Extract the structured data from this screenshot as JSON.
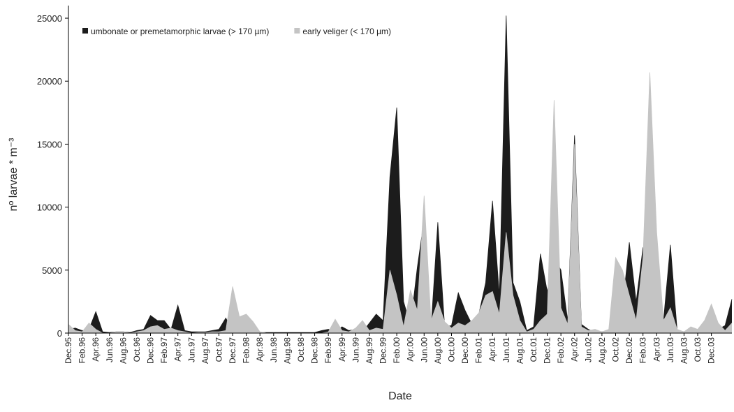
{
  "chart_data": {
    "type": "area",
    "x_label": "Date",
    "y_label": "nº larvae * m⁻³",
    "categories": [
      "Dec.95",
      null,
      "Feb.96",
      null,
      "Apr.96",
      null,
      "Jun.96",
      null,
      "Aug.96",
      null,
      "Oct.96",
      null,
      "Dec.96",
      null,
      "Feb.97",
      null,
      "Apr.97",
      null,
      "Jun.97",
      null,
      "Aug.97",
      null,
      "Oct.97",
      null,
      "Dec.97",
      null,
      "Feb.98",
      null,
      "Apr.98",
      null,
      "Jun.98",
      null,
      "Aug.98",
      null,
      "Oct.98",
      null,
      "Dec.98",
      null,
      "Feb.99",
      null,
      "Apr.99",
      null,
      "Jun.99",
      null,
      "Aug.99",
      null,
      "Dec.99",
      null,
      "Feb.00",
      null,
      "Apr.00",
      null,
      "Jun.00",
      null,
      "Aug.00",
      null,
      "Oct.00",
      null,
      "Dec.00",
      null,
      "Feb.01",
      null,
      "Apr.01",
      null,
      "Jun.01",
      null,
      "Aug.01",
      null,
      "Oct.01",
      null,
      "Dec.01",
      null,
      "Feb.02",
      null,
      "Apr.02",
      null,
      "Jun.02",
      null,
      "Aug.02",
      null,
      "Oct.02",
      null,
      "Dec.02",
      null,
      "Feb.03",
      null,
      "Apr.03",
      null,
      "Jun.03",
      null,
      "Aug.03",
      null,
      "Oct.03",
      null,
      "Dec.03",
      null,
      null,
      null
    ],
    "series": [
      {
        "name": "umbonate or premetamorphic larvae (> 170 µm)",
        "color": "#1c1c1c",
        "values": [
          300,
          400,
          200,
          300,
          1700,
          100,
          50,
          100,
          100,
          50,
          200,
          300,
          1400,
          1000,
          1000,
          300,
          2200,
          200,
          100,
          100,
          100,
          200,
          300,
          1200,
          200,
          100,
          100,
          100,
          50,
          50,
          50,
          50,
          50,
          50,
          50,
          50,
          50,
          200,
          300,
          100,
          500,
          200,
          300,
          100,
          800,
          1500,
          1000,
          12400,
          17900,
          2500,
          600,
          5200,
          9000,
          300,
          8800,
          500,
          600,
          3200,
          1800,
          700,
          1500,
          4000,
          10500,
          3000,
          25200,
          4000,
          2500,
          200,
          500,
          6300,
          3300,
          6000,
          5000,
          1000,
          15700,
          700,
          300,
          100,
          100,
          200,
          300,
          2000,
          7200,
          2500,
          6800,
          1500,
          4500,
          1000,
          7000,
          200,
          100,
          100,
          100,
          400,
          800,
          300,
          600,
          2700
        ]
      },
      {
        "name": "early veliger (< 170 µm)",
        "color": "#c4c4c4",
        "values": [
          700,
          200,
          100,
          800,
          300,
          0,
          0,
          100,
          100,
          0,
          100,
          200,
          500,
          600,
          300,
          400,
          200,
          100,
          0,
          50,
          50,
          100,
          100,
          200,
          3700,
          1300,
          1500,
          900,
          100,
          0,
          0,
          0,
          0,
          0,
          0,
          0,
          0,
          0,
          100,
          1100,
          200,
          100,
          400,
          1000,
          200,
          400,
          300,
          5000,
          3000,
          500,
          3400,
          1800,
          10900,
          1000,
          2500,
          900,
          400,
          800,
          600,
          1000,
          1600,
          3000,
          3300,
          1500,
          8000,
          3000,
          1000,
          100,
          300,
          1000,
          1500,
          18500,
          2000,
          700,
          15000,
          500,
          200,
          300,
          100,
          300,
          6000,
          5000,
          3000,
          1000,
          6000,
          20700,
          8000,
          1000,
          2000,
          300,
          100,
          500,
          300,
          1000,
          2300,
          800,
          200,
          800
        ]
      }
    ],
    "ylim": [
      0,
      26000
    ],
    "yticks": [
      0,
      5000,
      10000,
      15000,
      20000,
      25000
    ],
    "grid": false
  }
}
